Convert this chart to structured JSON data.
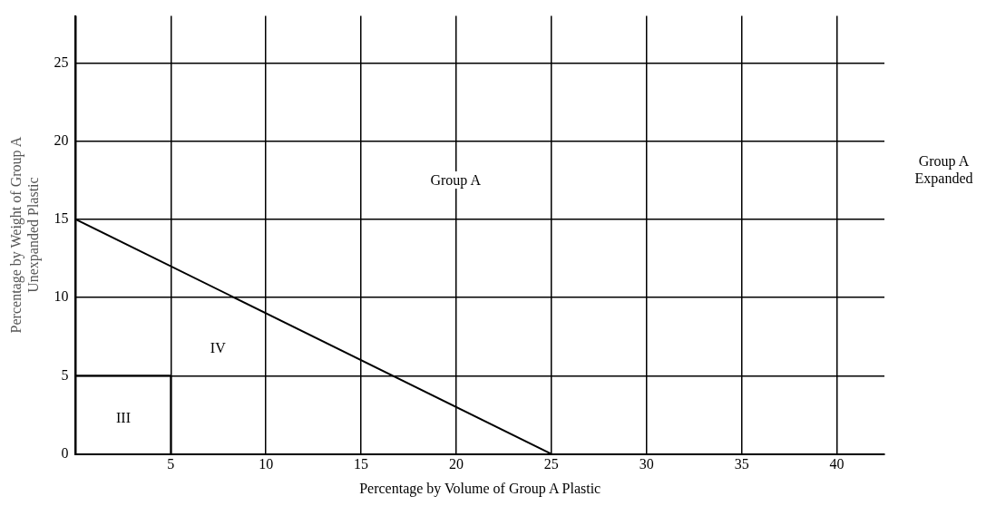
{
  "chart_data": {
    "type": "line",
    "xlabel": "Percentage by Volume of Group A Plastic",
    "ylabel": "Percentage by Weight of Group A\nUnexpanded Plastic",
    "series": [
      {
        "color": "#000000",
        "x": [
          0,
          25
        ],
        "values": [
          15,
          0
        ]
      },
      {
        "color": "#000000",
        "x": [
          0,
          5,
          5
        ],
        "values": [
          5,
          5,
          0
        ]
      }
    ],
    "xlim": [
      0,
      42.5
    ],
    "xticks": [
      {
        "value": 0,
        "label": null
      },
      5,
      10,
      15,
      20,
      25,
      30,
      35,
      40
    ],
    "ylim": [
      0,
      28
    ],
    "yticks": [
      0,
      5,
      10,
      15,
      20,
      25
    ],
    "grid": true,
    "marker": "none",
    "line_style": "solid",
    "annotations": [
      "Group A",
      "IV",
      "III",
      "Group A\nExpanded"
    ]
  }
}
